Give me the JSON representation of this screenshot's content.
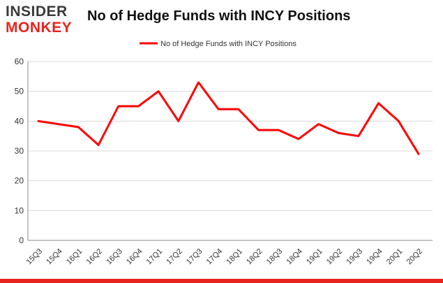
{
  "brand": {
    "line1": "INSIDER",
    "line2": "MONKEY",
    "color_dark": "#3a3a3a",
    "color_red": "#e8241f"
  },
  "chart_data": {
    "type": "line",
    "title": "No of Hedge Funds with INCY Positions",
    "xlabel": "",
    "ylabel": "",
    "categories": [
      "15Q3",
      "15Q4",
      "16Q1",
      "16Q2",
      "16Q3",
      "16Q4",
      "17Q1",
      "17Q2",
      "17Q3",
      "17Q4",
      "18Q1",
      "18Q2",
      "18Q3",
      "18Q4",
      "19Q1",
      "19Q2",
      "19Q3",
      "19Q4",
      "20Q1",
      "20Q2"
    ],
    "series": [
      {
        "name": "No of Hedge Funds with INCY Positions",
        "color": "#ff0000",
        "values": [
          40,
          39,
          38,
          32,
          45,
          45,
          50,
          40,
          53,
          44,
          44,
          37,
          37,
          34,
          39,
          36,
          35,
          46,
          40,
          29
        ]
      }
    ],
    "ylim": [
      0,
      60
    ],
    "yticks": [
      0,
      10,
      20,
      30,
      40,
      50,
      60
    ],
    "grid": true,
    "legend": "top-center"
  }
}
